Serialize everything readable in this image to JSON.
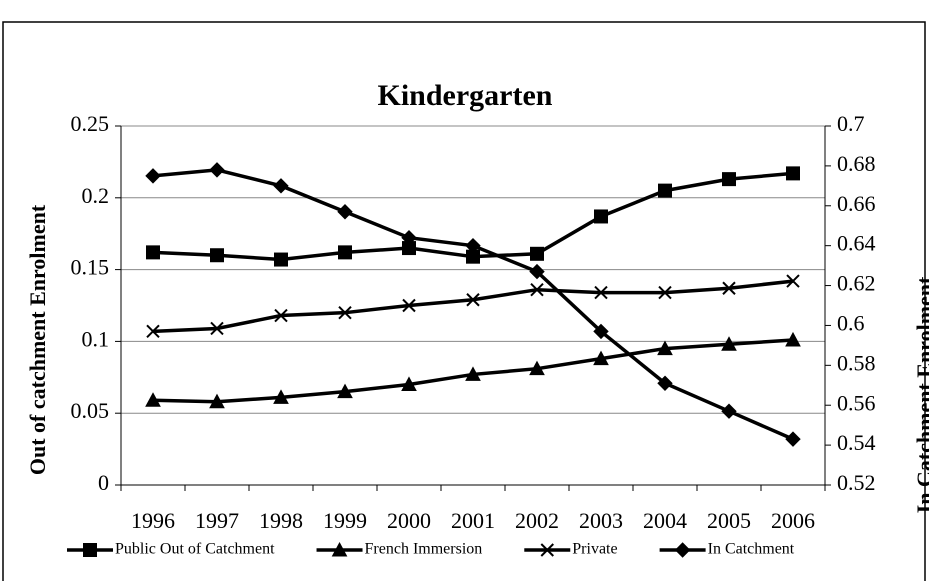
{
  "chart_data": {
    "type": "line",
    "title": "Kindergarten",
    "y_label": "Out of catchment Enrolment",
    "y2_label": "In Catchment Enrolment",
    "categories": [
      "1996",
      "1997",
      "1998",
      "1999",
      "2000",
      "2001",
      "2002",
      "2003",
      "2004",
      "2005",
      "2006"
    ],
    "ylim": [
      0,
      0.25
    ],
    "yticks": [
      0,
      0.05,
      0.1,
      0.15,
      0.2,
      0.25
    ],
    "y2lim": [
      0.52,
      0.7
    ],
    "y2ticks": [
      0.52,
      0.54,
      0.56,
      0.58,
      0.6,
      0.62,
      0.64,
      0.66,
      0.68,
      0.7
    ],
    "grid": true,
    "legend": "bottom",
    "series": [
      {
        "name": "Public Out of Catchment",
        "color": "#000000",
        "marker": "square",
        "values": [
          0.162,
          0.16,
          0.157,
          0.162,
          0.165,
          0.159,
          0.161,
          0.187,
          0.205,
          0.213,
          0.217
        ]
      },
      {
        "name": "French Immersion",
        "color": "#000000",
        "marker": "triangle",
        "values": [
          0.059,
          0.058,
          0.061,
          0.065,
          0.07,
          0.077,
          0.081,
          0.088,
          0.095,
          0.098,
          0.101
        ]
      },
      {
        "name": "Private",
        "color": "#000000",
        "marker": "x",
        "values": [
          0.107,
          0.109,
          0.118,
          0.12,
          0.125,
          0.129,
          0.136,
          0.134,
          0.134,
          0.137,
          0.142
        ]
      },
      {
        "name": "In Catchment",
        "color": "#000000",
        "marker": "diamond",
        "axis": "y2",
        "values": [
          0.675,
          0.678,
          0.67,
          0.657,
          0.644,
          0.64,
          0.627,
          0.597,
          0.571,
          0.557,
          0.543
        ]
      }
    ]
  }
}
